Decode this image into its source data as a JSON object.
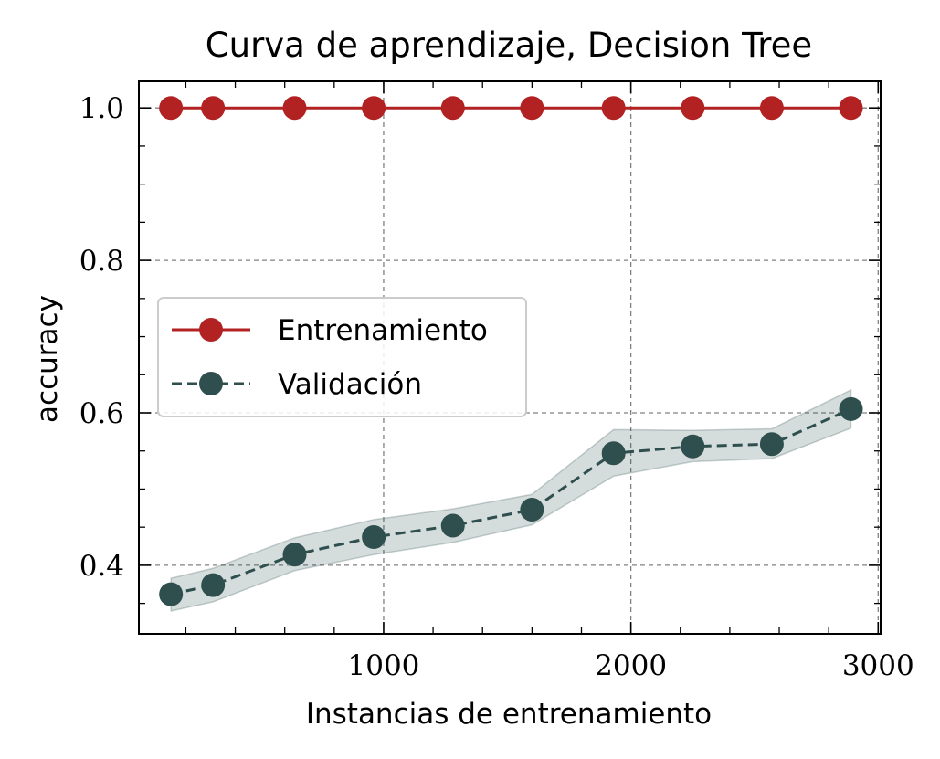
{
  "chart_data": {
    "type": "line",
    "title": "Curva de aprendizaje, Decision Tree",
    "xlabel": "Instancias de entrenamiento",
    "ylabel": "accuracy",
    "xlim": [
      10,
      3010
    ],
    "ylim": [
      0.31,
      1.035
    ],
    "xticks": [
      1000,
      2000,
      3000
    ],
    "xtick_labels": [
      "1000",
      "2000",
      "3000"
    ],
    "yticks": [
      0.4,
      0.6,
      0.8,
      1.0
    ],
    "ytick_labels": [
      "0.4",
      "0.6",
      "0.8",
      "1.0"
    ],
    "grid": true,
    "legend_position": "center-left",
    "x": [
      140,
      310,
      640,
      960,
      1280,
      1600,
      1930,
      2250,
      2570,
      2890
    ],
    "series": [
      {
        "name": "Entrenamiento",
        "color": "#b22222",
        "linestyle": "solid",
        "values": [
          1.0,
          1.0,
          1.0,
          1.0,
          1.0,
          1.0,
          1.0,
          1.0,
          1.0,
          1.0
        ]
      },
      {
        "name": "Validación",
        "color": "#2f4f4f",
        "linestyle": "dashed",
        "values": [
          0.362,
          0.374,
          0.414,
          0.437,
          0.452,
          0.473,
          0.547,
          0.556,
          0.559,
          0.605
        ],
        "band_lower": [
          0.34,
          0.352,
          0.393,
          0.414,
          0.43,
          0.453,
          0.517,
          0.536,
          0.54,
          0.58
        ],
        "band_upper": [
          0.383,
          0.396,
          0.436,
          0.46,
          0.474,
          0.493,
          0.578,
          0.577,
          0.579,
          0.63
        ]
      }
    ]
  }
}
